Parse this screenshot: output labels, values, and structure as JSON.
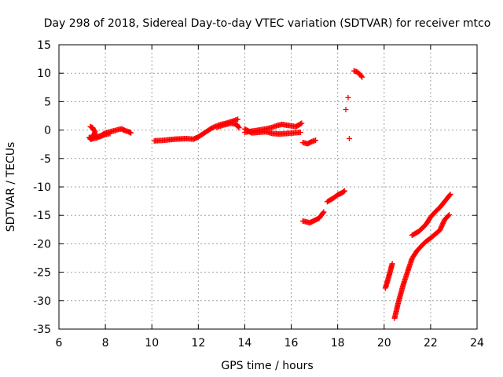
{
  "chart_data": {
    "type": "scatter",
    "title": "Day 298 of 2018, Sidereal Day-to-day VTEC variation (SDTVAR) for receiver mtco",
    "xlabel": "GPS time / hours",
    "ylabel": "SDTVAR / TECUs",
    "xlim": [
      6,
      24
    ],
    "ylim": [
      -35,
      15
    ],
    "xticks": [
      6,
      8,
      10,
      12,
      14,
      16,
      18,
      20,
      22,
      24
    ],
    "yticks": [
      15,
      10,
      5,
      0,
      -5,
      -10,
      -15,
      -20,
      -25,
      -30,
      -35
    ],
    "grid": true,
    "marker": "+",
    "color": "#ff0000",
    "series": [
      {
        "name": "arc1",
        "points": [
          [
            7.35,
            0.6
          ],
          [
            7.45,
            0.4
          ],
          [
            7.55,
            -0.3
          ],
          [
            7.5,
            -1.0
          ],
          [
            7.4,
            -1.6
          ],
          [
            7.3,
            -1.3
          ],
          [
            7.6,
            -1.2
          ],
          [
            7.8,
            -1.0
          ],
          [
            8.0,
            -0.5
          ],
          [
            8.2,
            -0.3
          ],
          [
            8.4,
            -0.1
          ],
          [
            8.55,
            0.1
          ],
          [
            8.7,
            0.2
          ],
          [
            8.85,
            -0.1
          ],
          [
            9.0,
            -0.3
          ],
          [
            9.1,
            -0.5
          ]
        ]
      },
      {
        "name": "arc2",
        "points": [
          [
            7.35,
            -1.6
          ],
          [
            7.6,
            -1.4
          ],
          [
            7.8,
            -1.1
          ],
          [
            8.0,
            -0.8
          ],
          [
            8.2,
            -0.6
          ]
        ]
      },
      {
        "name": "arc3",
        "points": [
          [
            10.1,
            -1.9
          ],
          [
            10.5,
            -1.8
          ],
          [
            11.0,
            -1.6
          ],
          [
            11.5,
            -1.5
          ],
          [
            11.8,
            -1.6
          ],
          [
            12.0,
            -1.2
          ],
          [
            12.3,
            -0.4
          ],
          [
            12.6,
            0.4
          ],
          [
            12.9,
            0.9
          ],
          [
            13.2,
            1.2
          ],
          [
            13.5,
            1.6
          ],
          [
            13.7,
            1.9
          ]
        ]
      },
      {
        "name": "arc4",
        "points": [
          [
            12.8,
            0.5
          ],
          [
            13.1,
            0.9
          ],
          [
            13.4,
            1.2
          ],
          [
            13.65,
            1.0
          ],
          [
            13.75,
            0.4
          ]
        ]
      },
      {
        "name": "arc5",
        "points": [
          [
            14.0,
            -0.4
          ],
          [
            14.3,
            -0.2
          ],
          [
            14.6,
            0.0
          ],
          [
            14.9,
            0.2
          ],
          [
            15.2,
            0.5
          ],
          [
            15.4,
            0.8
          ],
          [
            15.6,
            1.0
          ],
          [
            15.9,
            0.8
          ],
          [
            16.2,
            0.6
          ],
          [
            16.45,
            1.2
          ]
        ]
      },
      {
        "name": "arc6",
        "points": [
          [
            14.0,
            0.2
          ],
          [
            14.3,
            -0.5
          ],
          [
            14.6,
            -0.4
          ],
          [
            14.9,
            -0.3
          ],
          [
            15.2,
            -0.6
          ],
          [
            15.5,
            -0.7
          ],
          [
            15.8,
            -0.6
          ],
          [
            16.1,
            -0.5
          ],
          [
            16.4,
            -0.4
          ]
        ]
      },
      {
        "name": "arc7",
        "points": [
          [
            16.5,
            -2.2
          ],
          [
            16.7,
            -2.4
          ],
          [
            16.9,
            -2.0
          ],
          [
            17.05,
            -1.8
          ]
        ]
      },
      {
        "name": "arc8",
        "points": [
          [
            16.5,
            -16.0
          ],
          [
            16.8,
            -16.3
          ],
          [
            17.0,
            -15.9
          ],
          [
            17.2,
            -15.5
          ],
          [
            17.4,
            -14.4
          ]
        ]
      },
      {
        "name": "arc9",
        "points": [
          [
            17.55,
            -12.6
          ],
          [
            17.8,
            -12.0
          ],
          [
            18.0,
            -11.4
          ],
          [
            18.2,
            -11.0
          ],
          [
            18.3,
            -10.7
          ]
        ]
      },
      {
        "name": "isolated",
        "points": [
          [
            18.35,
            3.6
          ],
          [
            18.45,
            5.7
          ],
          [
            18.5,
            -1.5
          ]
        ]
      },
      {
        "name": "arc10",
        "points": [
          [
            18.7,
            10.4
          ],
          [
            18.85,
            10.2
          ],
          [
            19.0,
            9.6
          ],
          [
            19.05,
            9.3
          ]
        ]
      },
      {
        "name": "arc11",
        "points": [
          [
            20.05,
            -27.8
          ],
          [
            20.15,
            -26.5
          ],
          [
            20.25,
            -25.0
          ],
          [
            20.35,
            -23.5
          ]
        ]
      },
      {
        "name": "arc12",
        "points": [
          [
            20.45,
            -33.1
          ],
          [
            20.6,
            -30.5
          ],
          [
            20.8,
            -27.5
          ],
          [
            21.0,
            -25.0
          ],
          [
            21.2,
            -22.6
          ],
          [
            21.4,
            -21.3
          ],
          [
            21.6,
            -20.4
          ],
          [
            21.8,
            -19.6
          ],
          [
            22.0,
            -19.0
          ],
          [
            22.2,
            -18.3
          ],
          [
            22.4,
            -17.6
          ],
          [
            22.6,
            -15.8
          ],
          [
            22.8,
            -14.9
          ]
        ]
      },
      {
        "name": "arc13",
        "points": [
          [
            21.2,
            -18.5
          ],
          [
            21.5,
            -17.8
          ],
          [
            21.8,
            -16.6
          ],
          [
            22.0,
            -15.3
          ],
          [
            22.2,
            -14.4
          ],
          [
            22.4,
            -13.6
          ],
          [
            22.6,
            -12.6
          ],
          [
            22.85,
            -11.3
          ]
        ]
      }
    ]
  }
}
